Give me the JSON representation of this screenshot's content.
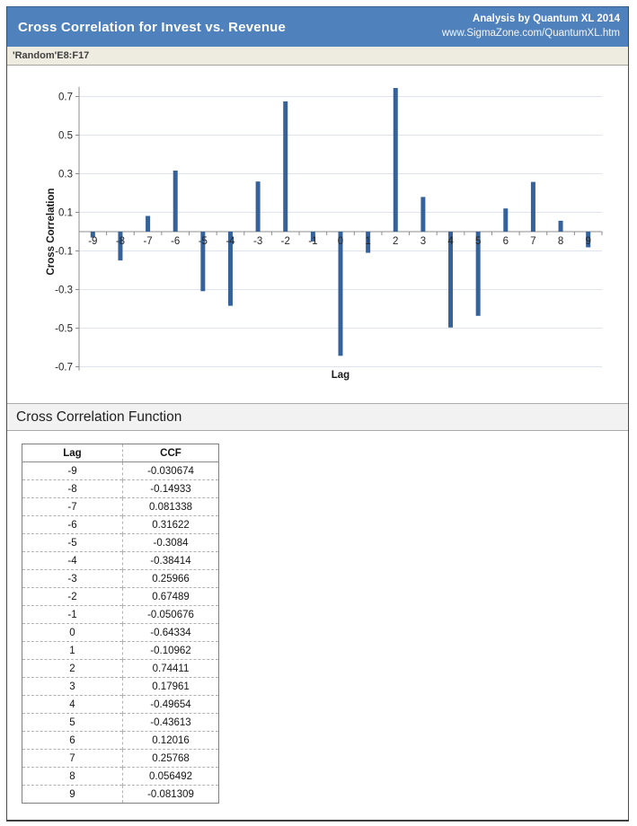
{
  "header": {
    "title": "Cross Correlation for Invest vs. Revenue",
    "byline": "Analysis by Quantum XL 2014",
    "url": "www.SigmaZone.com/QuantumXL.htm"
  },
  "subheader": {
    "range_ref": "'Random'E8:F17"
  },
  "section": {
    "title": "Cross Correlation Function"
  },
  "chart_data": {
    "type": "bar",
    "title": "",
    "xlabel": "Lag",
    "ylabel": "Cross Correlation",
    "categories": [
      -9,
      -8,
      -7,
      -6,
      -5,
      -4,
      -3,
      -2,
      -1,
      0,
      1,
      2,
      3,
      4,
      5,
      6,
      7,
      8,
      9
    ],
    "values": [
      -0.030674,
      -0.14933,
      0.081338,
      0.31622,
      -0.3084,
      -0.38414,
      0.25966,
      0.67489,
      -0.050676,
      -0.64334,
      -0.10962,
      0.74411,
      0.17961,
      -0.49654,
      -0.43613,
      0.12016,
      0.25768,
      0.056492,
      -0.081309
    ],
    "ylim": [
      -0.72,
      0.75
    ],
    "yticks": [
      0.7,
      0.5,
      0.3,
      0.1,
      -0.1,
      -0.3,
      -0.5,
      -0.7
    ],
    "grid": true,
    "legend": false,
    "bar_color": "#35629b",
    "gridline_color": "#dfe3ee",
    "axis_color": "#8c8c8c",
    "tick_label_color": "#262626"
  },
  "table": {
    "headers": [
      "Lag",
      "CCF"
    ],
    "rows": [
      [
        "-9",
        "-0.030674"
      ],
      [
        "-8",
        "-0.14933"
      ],
      [
        "-7",
        "0.081338"
      ],
      [
        "-6",
        "0.31622"
      ],
      [
        "-5",
        "-0.3084"
      ],
      [
        "-4",
        "-0.38414"
      ],
      [
        "-3",
        "0.25966"
      ],
      [
        "-2",
        "0.67489"
      ],
      [
        "-1",
        "-0.050676"
      ],
      [
        "0",
        "-0.64334"
      ],
      [
        "1",
        "-0.10962"
      ],
      [
        "2",
        "0.74411"
      ],
      [
        "3",
        "0.17961"
      ],
      [
        "4",
        "-0.49654"
      ],
      [
        "5",
        "-0.43613"
      ],
      [
        "6",
        "0.12016"
      ],
      [
        "7",
        "0.25768"
      ],
      [
        "8",
        "0.056492"
      ],
      [
        "9",
        "-0.081309"
      ]
    ]
  },
  "colors": {
    "header_bg": "#4f81bd",
    "subheader_bg": "#eeece1",
    "section_bg": "#f2f2f2",
    "frame_border": "#4a4a4a"
  }
}
